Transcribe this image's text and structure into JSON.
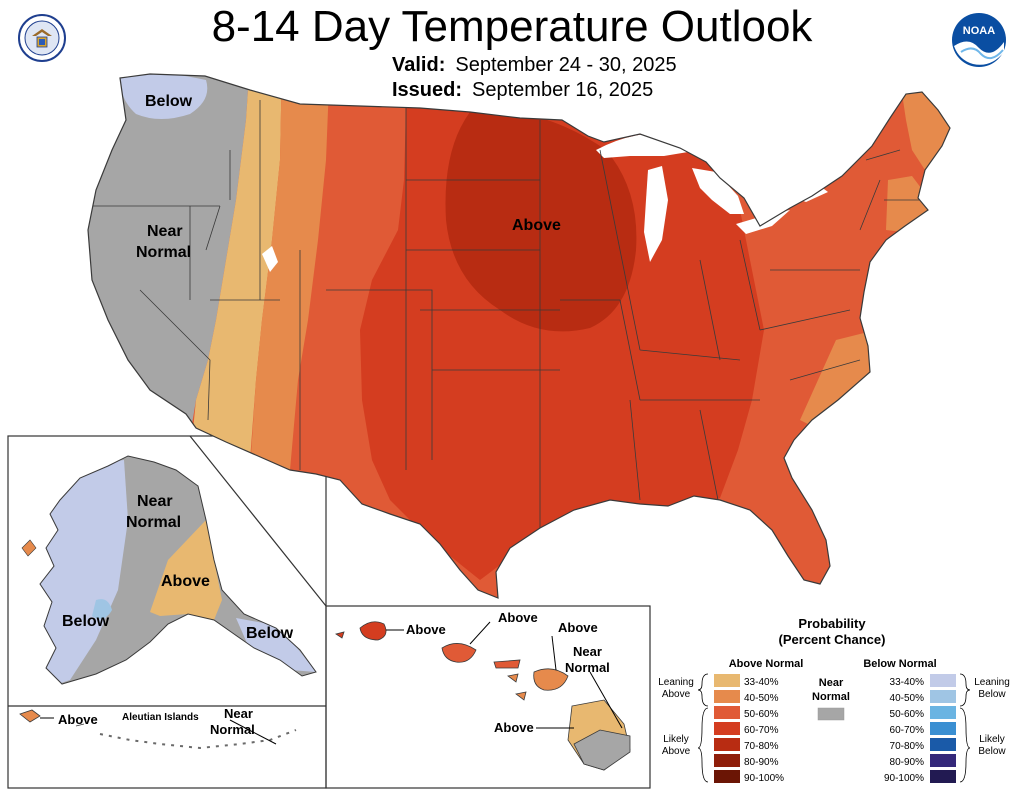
{
  "header": {
    "title": "8-14 Day Temperature Outlook",
    "valid_label": "Valid:",
    "valid_value": "September 24 - 30, 2025",
    "issued_label": "Issued:",
    "issued_value": "September 16, 2025"
  },
  "map_labels": {
    "conus_below": "Below",
    "conus_near_1": "Near",
    "conus_near_2": "Normal",
    "conus_above": "Above",
    "alaska_near_1": "Near",
    "alaska_near_2": "Normal",
    "alaska_above": "Above",
    "alaska_below_w": "Below",
    "alaska_below_se": "Below",
    "aleutian_above": "Above",
    "aleutian_islands": "Aleutian Islands",
    "aleutian_near_1": "Near",
    "aleutian_near_2": "Normal",
    "hawaii_above_1": "Above",
    "hawaii_above_2": "Above",
    "hawaii_above_3": "Above",
    "hawaii_near_1": "Near",
    "hawaii_near_2": "Normal",
    "hawaii_above_4": "Above"
  },
  "legend": {
    "title_1": "Probability",
    "title_2": "(Percent Chance)",
    "above_header": "Above Normal",
    "below_header": "Below Normal",
    "near_1": "Near",
    "near_2": "Normal",
    "near_color": "#a6a6a6",
    "leaning_above_1": "Leaning",
    "leaning_above_2": "Above",
    "likely_above_1": "Likely",
    "likely_above_2": "Above",
    "leaning_below_1": "Leaning",
    "leaning_below_2": "Below",
    "likely_below_1": "Likely",
    "likely_below_2": "Below",
    "above_items": [
      {
        "label": "33-40%",
        "color": "#e8b870"
      },
      {
        "label": "40-50%",
        "color": "#e68a4c"
      },
      {
        "label": "50-60%",
        "color": "#e05a36"
      },
      {
        "label": "60-70%",
        "color": "#d43d20"
      },
      {
        "label": "70-80%",
        "color": "#b82c12"
      },
      {
        "label": "80-90%",
        "color": "#8f1e0a"
      },
      {
        "label": "90-100%",
        "color": "#6b1505"
      }
    ],
    "below_items": [
      {
        "label": "33-40%",
        "color": "#c2cbe8"
      },
      {
        "label": "40-50%",
        "color": "#9fc5e4"
      },
      {
        "label": "50-60%",
        "color": "#6ab4e2"
      },
      {
        "label": "60-70%",
        "color": "#3a8fd2"
      },
      {
        "label": "70-80%",
        "color": "#1a5aa8"
      },
      {
        "label": "80-90%",
        "color": "#34287a"
      },
      {
        "label": "90-100%",
        "color": "#221a52"
      }
    ]
  },
  "colors": {
    "near": "#a6a6a6",
    "below_light": "#c2cbe8",
    "above_33": "#e8b870",
    "above_40": "#e68a4c",
    "above_50": "#e05a36",
    "above_60": "#d43d20",
    "above_70": "#b82c12",
    "border": "#3a3a3a",
    "water": "#ffffff"
  },
  "emblems": {
    "left": "department-of-commerce-seal",
    "right": "noaa-logo",
    "right_text": "NOAA"
  }
}
